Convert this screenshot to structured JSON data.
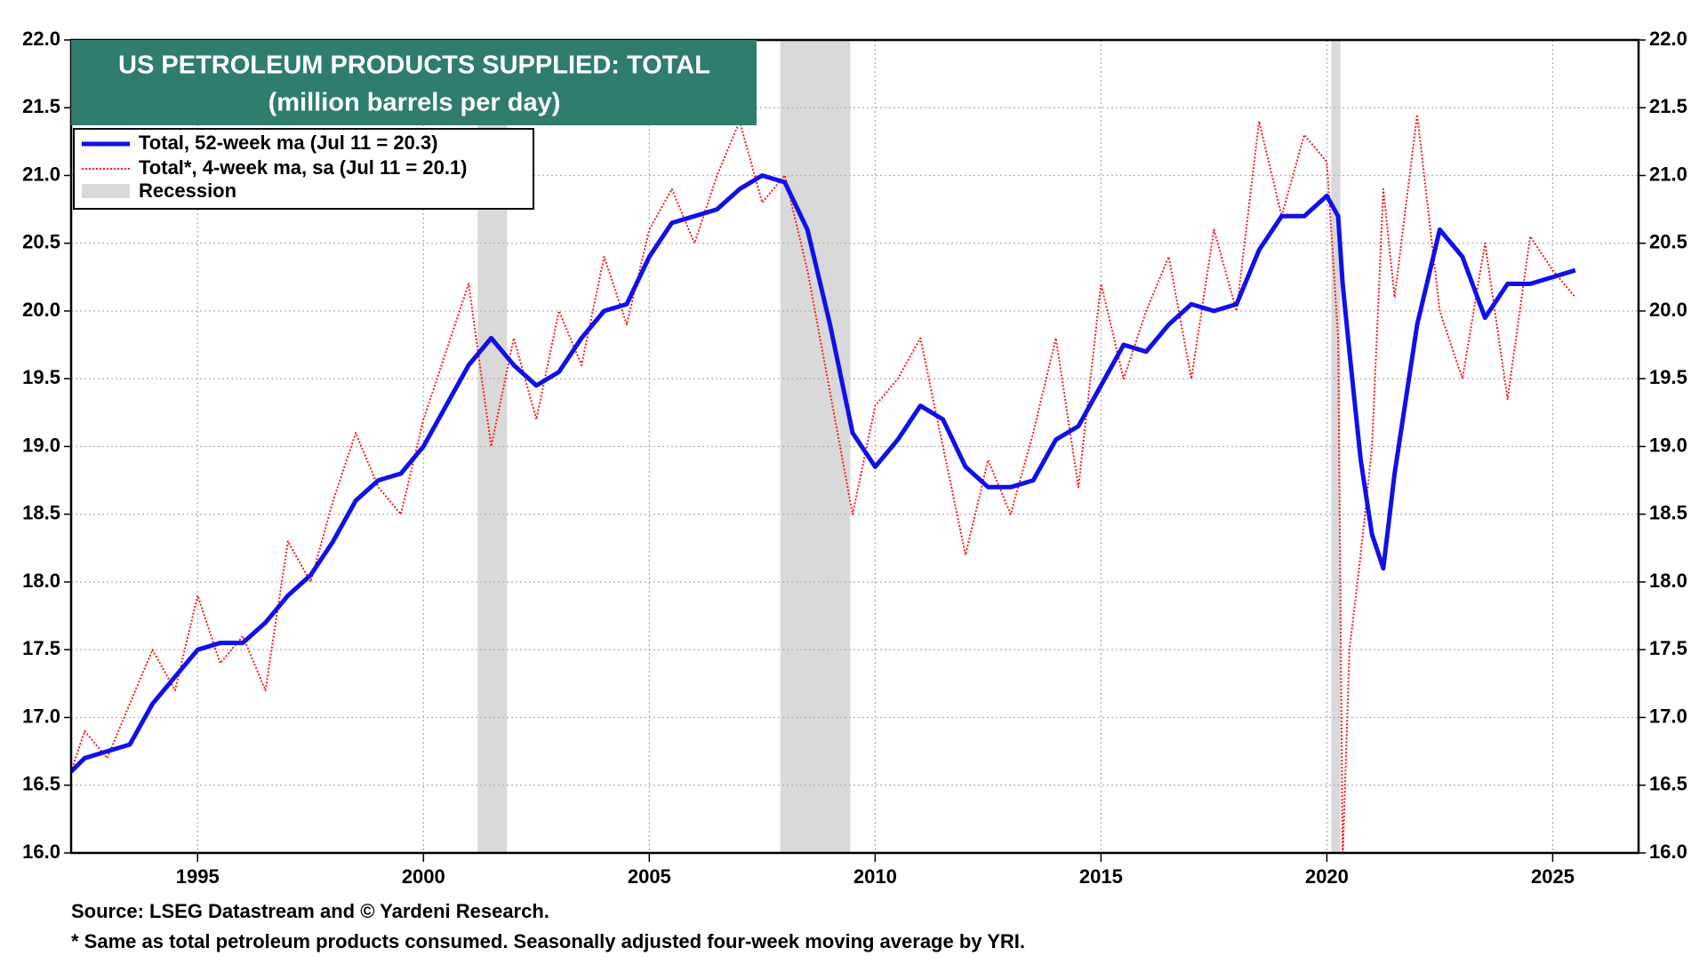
{
  "chart_data": {
    "type": "line",
    "title": "US PETROLEUM PRODUCTS SUPPLIED: TOTAL",
    "subtitle": "(million barrels per day)",
    "source": "Source: LSEG Datastream and © Yardeni Research.",
    "footnote": "* Same as total petroleum products consumed. Seasonally adjusted four-week moving average by YRI.",
    "recession_label": "Recession",
    "recession_color": "#d9d9d9",
    "recessions": [
      [
        2001.2,
        2001.85
      ],
      [
        2007.9,
        2009.45
      ],
      [
        2020.1,
        2020.3
      ]
    ],
    "x": [
      1992.2,
      1992.5,
      1993.0,
      1993.5,
      1994.0,
      1994.5,
      1995.0,
      1995.5,
      1996.0,
      1996.5,
      1997.0,
      1997.5,
      1998.0,
      1998.5,
      1999.0,
      1999.5,
      2000.0,
      2000.5,
      2001.0,
      2001.5,
      2002.0,
      2002.5,
      2003.0,
      2003.5,
      2004.0,
      2004.5,
      2005.0,
      2005.5,
      2006.0,
      2006.5,
      2007.0,
      2007.5,
      2008.0,
      2008.5,
      2009.0,
      2009.5,
      2010.0,
      2010.5,
      2011.0,
      2011.5,
      2012.0,
      2012.5,
      2013.0,
      2013.5,
      2014.0,
      2014.5,
      2015.0,
      2015.5,
      2016.0,
      2016.5,
      2017.0,
      2017.5,
      2018.0,
      2018.5,
      2019.0,
      2019.5,
      2020.0,
      2020.25,
      2020.35,
      2020.5,
      2020.75,
      2021.0,
      2021.25,
      2021.5,
      2022.0,
      2022.5,
      2023.0,
      2023.5,
      2024.0,
      2024.5,
      2025.0,
      2025.5
    ],
    "series": [
      {
        "name": "Total, 52-week ma (Jul 11 = 20.3)",
        "color": "#1010e8",
        "style": "solid",
        "values": [
          16.6,
          16.7,
          16.75,
          16.8,
          17.1,
          17.3,
          17.5,
          17.55,
          17.55,
          17.7,
          17.9,
          18.05,
          18.3,
          18.6,
          18.75,
          18.8,
          19.0,
          19.3,
          19.6,
          19.8,
          19.6,
          19.45,
          19.55,
          19.8,
          20.0,
          20.05,
          20.4,
          20.65,
          20.7,
          20.75,
          20.9,
          21.0,
          20.95,
          20.6,
          19.9,
          19.1,
          18.85,
          19.05,
          19.3,
          19.2,
          18.85,
          18.7,
          18.7,
          18.75,
          19.05,
          19.15,
          19.45,
          19.75,
          19.7,
          19.9,
          20.05,
          20.0,
          20.05,
          20.45,
          20.7,
          20.7,
          20.85,
          20.7,
          20.2,
          19.7,
          18.9,
          18.35,
          18.1,
          18.8,
          19.9,
          20.6,
          20.4,
          19.95,
          20.2,
          20.2,
          20.25,
          20.3
        ]
      },
      {
        "name": "Total*, 4-week ma, sa (Jul 11 = 20.1)",
        "color": "#ff1a1a",
        "style": "dotted",
        "values": [
          16.6,
          16.9,
          16.7,
          17.1,
          17.5,
          17.2,
          17.9,
          17.4,
          17.6,
          17.2,
          18.3,
          18.0,
          18.6,
          19.1,
          18.7,
          18.5,
          19.2,
          19.7,
          20.2,
          19.0,
          19.8,
          19.2,
          20.0,
          19.6,
          20.4,
          19.9,
          20.6,
          20.9,
          20.5,
          21.0,
          21.4,
          20.8,
          21.0,
          20.3,
          19.4,
          18.5,
          19.3,
          19.5,
          19.8,
          19.0,
          18.2,
          18.9,
          18.5,
          19.1,
          19.8,
          18.7,
          20.2,
          19.5,
          20.0,
          20.4,
          19.5,
          20.6,
          20.0,
          21.4,
          20.7,
          21.3,
          21.1,
          19.8,
          15.95,
          17.5,
          18.2,
          19.0,
          20.9,
          20.1,
          21.45,
          20.0,
          19.5,
          20.5,
          19.35,
          20.55,
          20.3,
          20.1
        ]
      }
    ],
    "xlim": [
      1992.2,
      2026.9
    ],
    "xticks": [
      1995,
      2000,
      2005,
      2010,
      2015,
      2020,
      2025
    ],
    "ylim": [
      16,
      22
    ],
    "yticks": [
      {
        "value": 16,
        "label": "16.0"
      },
      {
        "value": 16.5,
        "label": "16.5"
      },
      {
        "value": 17,
        "label": "17.0"
      },
      {
        "value": 17.5,
        "label": "17.5"
      },
      {
        "value": 18,
        "label": "18.0"
      },
      {
        "value": 18.5,
        "label": "18.5"
      },
      {
        "value": 19,
        "label": "19.0"
      },
      {
        "value": 19.5,
        "label": "19.5"
      },
      {
        "value": 20,
        "label": "20.0"
      },
      {
        "value": 20.5,
        "label": "20.5"
      },
      {
        "value": 21,
        "label": "21.0"
      },
      {
        "value": 21.5,
        "label": "21.5"
      },
      {
        "value": 22,
        "label": "22.0"
      }
    ],
    "grid": true,
    "title_box_color": "#2e7d6f"
  }
}
